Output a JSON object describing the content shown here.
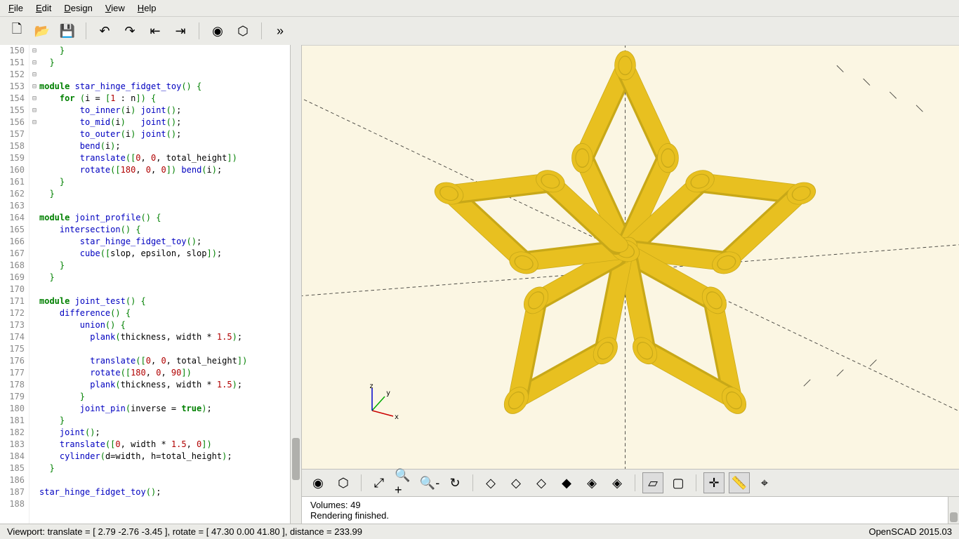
{
  "menubar": [
    "File",
    "Edit",
    "Design",
    "View",
    "Help"
  ],
  "toolbar_icons": [
    "new",
    "open",
    "save",
    "undo",
    "redo",
    "unindent",
    "indent",
    "preview",
    "render",
    "overflow"
  ],
  "line_start": 150,
  "line_end": 188,
  "fold_markers": {
    "153": "⊟",
    "154": "⊟",
    "164": "⊟",
    "165": "⊟",
    "171": "⊟",
    "172": "⊟",
    "173": "⊟"
  },
  "code_lines": [
    "    }",
    "  }",
    "",
    "module star_hinge_fidget_toy() {",
    "    for (i = [1 : n]) {",
    "        to_inner(i) joint();",
    "        to_mid(i)   joint();",
    "        to_outer(i) joint();",
    "        bend(i);",
    "        translate([0, 0, total_height])",
    "        rotate([180, 0, 0]) bend(i);",
    "    }",
    "  }",
    "",
    "module joint_profile() {",
    "    intersection() {",
    "        star_hinge_fidget_toy();",
    "        cube([slop, epsilon, slop]);",
    "    }",
    "  }",
    "",
    "module joint_test() {",
    "    difference() {",
    "        union() {",
    "          plank(thickness, width * 1.5);",
    "",
    "          translate([0, 0, total_height])",
    "          rotate([180, 0, 90])",
    "          plank(thickness, width * 1.5);",
    "        }",
    "        joint_pin(inverse = true);",
    "    }",
    "    joint();",
    "    translate([0, width * 1.5, 0])",
    "    cylinder(d=width, h=total_height);",
    "  }",
    "",
    "star_hinge_fidget_toy();",
    ""
  ],
  "syntax": {
    "keywords": [
      "module",
      "for",
      "true"
    ],
    "functions": [
      "to_inner",
      "to_mid",
      "to_outer",
      "bend",
      "translate",
      "rotate",
      "joint",
      "intersection",
      "star_hinge_fidget_toy",
      "cube",
      "difference",
      "union",
      "plank",
      "joint_pin",
      "cylinder",
      "joint_profile",
      "joint_test"
    ],
    "identifiers": [
      "i",
      "n",
      "total_height",
      "slop",
      "epsilon",
      "thickness",
      "width",
      "inverse",
      "d",
      "h"
    ]
  },
  "view_toolbar": [
    "preview",
    "render-view",
    "zoom-fit",
    "zoom-in",
    "zoom-out",
    "reset-view",
    "view-right",
    "view-top",
    "view-bottom",
    "view-left",
    "view-front",
    "view-back",
    "persp",
    "ortho",
    "axes",
    "scale",
    "crosshair"
  ],
  "view_toolbar_active": [
    "persp",
    "axes",
    "scale"
  ],
  "console": {
    "line1": "   Volumes:        49",
    "line2": "Rendering finished."
  },
  "statusbar": {
    "left": "Viewport: translate = [ 2.79 -2.76 -3.45 ], rotate = [ 47.30 0.00 41.80 ], distance = 233.99",
    "right": "OpenSCAD 2015.03"
  },
  "viewport": {
    "bg": "#fbf6e3",
    "model_color": "#e8c020",
    "shadow_color": "#c8a818"
  },
  "axes": {
    "x": "x",
    "y": "y",
    "z": "z"
  }
}
